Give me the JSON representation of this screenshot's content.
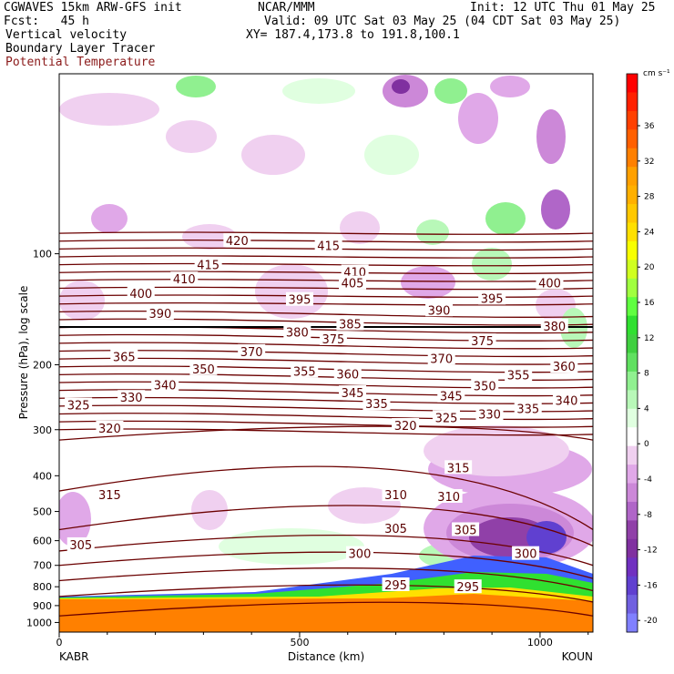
{
  "header": {
    "model": "CGWAVES 15km ARW-GFS init",
    "org": "NCAR/MMM",
    "init": "Init: 12 UTC Thu 01 May 25",
    "fcst": "Fcst:   45 h",
    "valid": "Valid: 09 UTC Sat 03 May 25 (04 CDT Sat 03 May 25)",
    "field1": "Vertical velocity",
    "field2": "Boundary Layer Tracer",
    "field3": "Potential Temperature",
    "xy": "XY= 187.4,173.8 to 191.8,100.1"
  },
  "colors": {
    "theta": "#6b0000",
    "theta_label": "#8b1a1a"
  },
  "chart_data": {
    "type": "heatmap",
    "ylabel": "Pressure (hPa), log scale",
    "xlabel": "Distance (km)",
    "x_left_label": "KABR",
    "x_right_label": "KOUN",
    "x_ticks": [
      0,
      500,
      1000
    ],
    "xlim": [
      0,
      1110
    ],
    "y_ticks": [
      100,
      200,
      300,
      400,
      500,
      600,
      700,
      800,
      900,
      1000
    ],
    "y_log": true,
    "colorbar": {
      "unit": "cm s⁻¹",
      "labels": [
        36,
        32,
        28,
        24,
        20,
        16,
        12,
        8,
        4,
        0,
        -4,
        -8,
        -12,
        -16,
        -20
      ],
      "colors": [
        "#ff0000",
        "#ff2000",
        "#ff4000",
        "#ff6000",
        "#ff8000",
        "#ffa000",
        "#ffb000",
        "#ffc800",
        "#ffe000",
        "#f8ff00",
        "#d0ff20",
        "#a0ff40",
        "#60ff40",
        "#30e030",
        "#40d040",
        "#60e060",
        "#90f090",
        "#b8f8b8",
        "#e0ffe0",
        "#ffffff",
        "#f0d0f0",
        "#e0a8e8",
        "#cc88d8",
        "#b066c8",
        "#9040a8",
        "#8030a0",
        "#7030c0",
        "#6040d0",
        "#7060e0",
        "#8080ff"
      ]
    },
    "theta_labels": [
      {
        "v": "420",
        "x": 370,
        "p": 92
      },
      {
        "v": "415",
        "x": 310,
        "p": 107
      },
      {
        "v": "415",
        "x": 560,
        "p": 95
      },
      {
        "v": "410",
        "x": 260,
        "p": 117
      },
      {
        "v": "410",
        "x": 615,
        "p": 112
      },
      {
        "v": "405",
        "x": 610,
        "p": 120
      },
      {
        "v": "400",
        "x": 170,
        "p": 128
      },
      {
        "v": "400",
        "x": 1020,
        "p": 120
      },
      {
        "v": "395",
        "x": 500,
        "p": 133
      },
      {
        "v": "395",
        "x": 900,
        "p": 132
      },
      {
        "v": "390",
        "x": 210,
        "p": 145
      },
      {
        "v": "390",
        "x": 790,
        "p": 142
      },
      {
        "v": "385",
        "x": 605,
        "p": 155
      },
      {
        "v": "380",
        "x": 495,
        "p": 163
      },
      {
        "v": "380",
        "x": 1030,
        "p": 157
      },
      {
        "v": "375",
        "x": 570,
        "p": 170
      },
      {
        "v": "375",
        "x": 880,
        "p": 172
      },
      {
        "v": "370",
        "x": 400,
        "p": 184
      },
      {
        "v": "370",
        "x": 795,
        "p": 192
      },
      {
        "v": "365",
        "x": 135,
        "p": 190
      },
      {
        "v": "360",
        "x": 600,
        "p": 212
      },
      {
        "v": "360",
        "x": 1050,
        "p": 202
      },
      {
        "v": "355",
        "x": 510,
        "p": 208
      },
      {
        "v": "355",
        "x": 955,
        "p": 213
      },
      {
        "v": "350",
        "x": 300,
        "p": 205
      },
      {
        "v": "350",
        "x": 885,
        "p": 228
      },
      {
        "v": "345",
        "x": 610,
        "p": 238
      },
      {
        "v": "345",
        "x": 815,
        "p": 243
      },
      {
        "v": "340",
        "x": 220,
        "p": 227
      },
      {
        "v": "340",
        "x": 1055,
        "p": 250
      },
      {
        "v": "335",
        "x": 660,
        "p": 255
      },
      {
        "v": "335",
        "x": 975,
        "p": 263
      },
      {
        "v": "330",
        "x": 150,
        "p": 245
      },
      {
        "v": "330",
        "x": 895,
        "p": 272
      },
      {
        "v": "325",
        "x": 40,
        "p": 257
      },
      {
        "v": "325",
        "x": 805,
        "p": 278
      },
      {
        "v": "320",
        "x": 105,
        "p": 297
      },
      {
        "v": "320",
        "x": 720,
        "p": 292
      },
      {
        "v": "315",
        "x": 105,
        "p": 450
      },
      {
        "v": "315",
        "x": 830,
        "p": 380
      },
      {
        "v": "310",
        "x": 700,
        "p": 450
      },
      {
        "v": "310",
        "x": 810,
        "p": 455
      },
      {
        "v": "305",
        "x": 45,
        "p": 615
      },
      {
        "v": "305",
        "x": 700,
        "p": 555
      },
      {
        "v": "305",
        "x": 845,
        "p": 560
      },
      {
        "v": "300",
        "x": 625,
        "p": 650
      },
      {
        "v": "300",
        "x": 970,
        "p": 650
      },
      {
        "v": "295",
        "x": 700,
        "p": 790
      },
      {
        "v": "295",
        "x": 850,
        "p": 800
      }
    ]
  }
}
